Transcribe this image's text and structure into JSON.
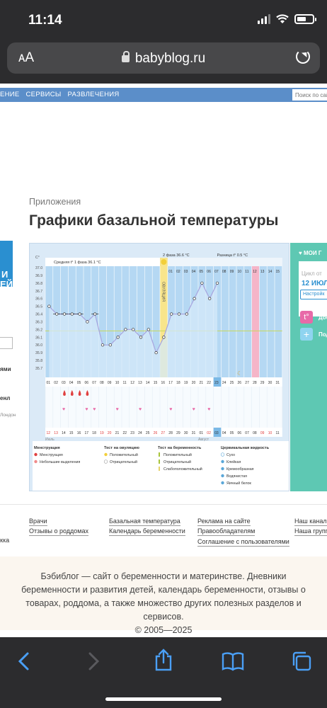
{
  "status": {
    "time": "11:14"
  },
  "browser": {
    "aa": "ᴀA",
    "url": "babyblog.ru"
  },
  "nav": {
    "links": [
      "ЕНИЕ",
      "СЕРВИСЫ",
      "РАЗВЛЕЧЕНИЯ"
    ],
    "search_placeholder": "Поиск по сай"
  },
  "breadcrumb": "Приложения",
  "title": "Графики базальной температуры",
  "sidebar_left": {
    "card": [
      "И",
      "ЕЙ"
    ],
    "texts": [
      "ями",
      "енл",
      "Лондон"
    ]
  },
  "right_panel": {
    "head": "МОИ Г",
    "cycle_label": "Цикл от",
    "cycle_date": "12 ИЮЛЯ",
    "settings": "Настройк",
    "add1": "Доб",
    "add2": "Под"
  },
  "chart_data": {
    "type": "line",
    "title": "",
    "y_unit": "C°",
    "ylim": [
      35.7,
      37.0
    ],
    "y_ticks": [
      37.0,
      36.9,
      36.8,
      36.7,
      36.6,
      36.5,
      36.4,
      36.3,
      36.2,
      36.1,
      36.0,
      35.9,
      35.8,
      35.7
    ],
    "phase1_label": "Средняя t° 1 фаза 36.1 °C",
    "phase2_label": "2 фаза 36.6 °C",
    "diff_label": "Разница t° 0.5 °C",
    "ovulation_label": "ОВУЛЯЦИЯ",
    "days": [
      "01",
      "02",
      "03",
      "04",
      "05",
      "06",
      "07",
      "08",
      "09",
      "10",
      "11",
      "12",
      "13",
      "14",
      "15",
      "16",
      "17",
      "18",
      "19",
      "20",
      "21",
      "22",
      "23",
      "24",
      "25",
      "26",
      "27",
      "28",
      "29",
      "30",
      "31"
    ],
    "header_days_phase2": [
      "01",
      "02",
      "03",
      "04",
      "05",
      "06",
      "07",
      "08",
      "09",
      "10",
      "11",
      "12",
      "13",
      "14",
      "15"
    ],
    "temperatures": [
      36.5,
      36.4,
      36.4,
      36.4,
      36.4,
      36.3,
      36.4,
      36.0,
      36.0,
      36.1,
      36.2,
      36.2,
      36.1,
      36.2,
      35.9,
      36.1,
      36.4,
      36.4,
      36.4,
      36.6,
      36.8,
      36.6,
      36.8
    ],
    "dates_row": [
      "12",
      "13",
      "14",
      "15",
      "16",
      "17",
      "18",
      "19",
      "20",
      "21",
      "22",
      "23",
      "24",
      "25",
      "26",
      "27",
      "28",
      "29",
      "30",
      "31",
      "01",
      "02",
      "03",
      "04",
      "05",
      "06",
      "07",
      "08",
      "09",
      "10",
      "11"
    ],
    "red_dates": [
      "12",
      "13",
      "19",
      "20",
      "26",
      "27",
      "02",
      "09",
      "10"
    ],
    "month_labels": [
      "Июль",
      "Август"
    ],
    "colors": {
      "line": "#a8a8e0",
      "point": "#333333",
      "grid": "#ffffff",
      "bg": "#b5d8f3",
      "ovulation": "#f8e58b",
      "pink": "#f5b5c8",
      "menstruation": "#e04040",
      "heart": "#e86aa8",
      "cover_line": "#c8d85a"
    }
  },
  "legend": {
    "menstruation": {
      "title": "Менструация",
      "items": [
        "Менструация",
        "Небольшие выделения"
      ]
    },
    "ovulation_test": {
      "title": "Тест на овуляцию",
      "items": [
        "Положительный",
        "Отрицательный"
      ]
    },
    "pregnancy_test": {
      "title": "Тест на беременность",
      "items": [
        "Положительный",
        "Отрицательный",
        "Слабоположительный"
      ]
    },
    "cervical": {
      "title": "Цервикальная жидкость",
      "items": [
        "Сухо",
        "Клейкая",
        "Кремообразная",
        "Водянистая",
        "Яичный белок"
      ]
    },
    "bottom": [
      "Половой акт",
      "Прием лекарств",
      "Лунный календарь"
    ]
  },
  "footer": {
    "col0": [
      "кка"
    ],
    "col1": [
      "Врачи",
      "Отзывы о роддомах"
    ],
    "col2": [
      "Базальная температура",
      "Календарь беременности"
    ],
    "col3": [
      "Реклама на сайте",
      "Правообладателям",
      "Соглашение с пользователями"
    ],
    "col4": [
      "Наш канал в",
      "Наша группа"
    ],
    "about": "Бэбиблог — сайт о беременности и материнстве. Дневники беременности и развития детей, календарь беременности, отзывы о товарах, роддома, а также множество других полезных разделов и сервисов.",
    "copyright": "© 2005—2025"
  }
}
